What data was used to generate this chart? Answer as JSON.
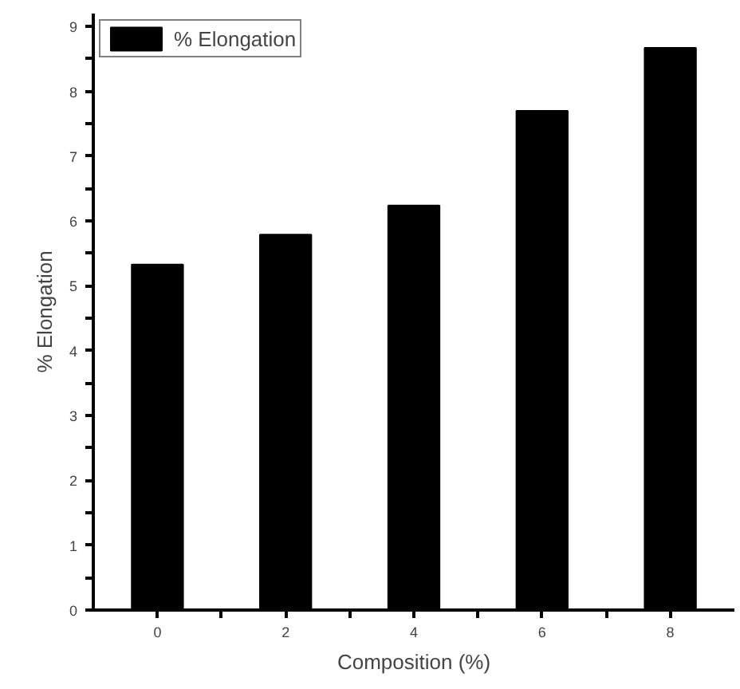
{
  "chart_data": {
    "type": "bar",
    "xlabel": "Composition (%)",
    "ylabel": "% Elongation",
    "x": [
      0,
      2,
      4,
      6,
      8
    ],
    "series": [
      {
        "name": "% Elongation",
        "color": "#000000",
        "values": [
          5.33,
          5.79,
          6.24,
          7.7,
          8.67
        ]
      }
    ],
    "xlim": [
      -1,
      9
    ],
    "ylim": [
      0,
      9.2
    ],
    "xticks": [
      0,
      {
        "value": 1,
        "label": null
      },
      2,
      {
        "value": 3,
        "label": null
      },
      4,
      {
        "value": 5,
        "label": null
      },
      6,
      {
        "value": 7,
        "label": null
      },
      8
    ],
    "yticks": [
      0,
      {
        "value": 0.5,
        "label": null
      },
      1,
      {
        "value": 1.5,
        "label": null
      },
      2,
      {
        "value": 2.5,
        "label": null
      },
      3,
      {
        "value": 3.5,
        "label": null
      },
      4,
      {
        "value": 4.5,
        "label": null
      },
      5,
      {
        "value": 5.5,
        "label": null
      },
      6,
      {
        "value": 6.5,
        "label": null
      },
      7,
      {
        "value": 7.5,
        "label": null
      },
      8,
      {
        "value": 8.5,
        "label": null
      },
      9
    ],
    "grid": false,
    "legend": "top left"
  }
}
